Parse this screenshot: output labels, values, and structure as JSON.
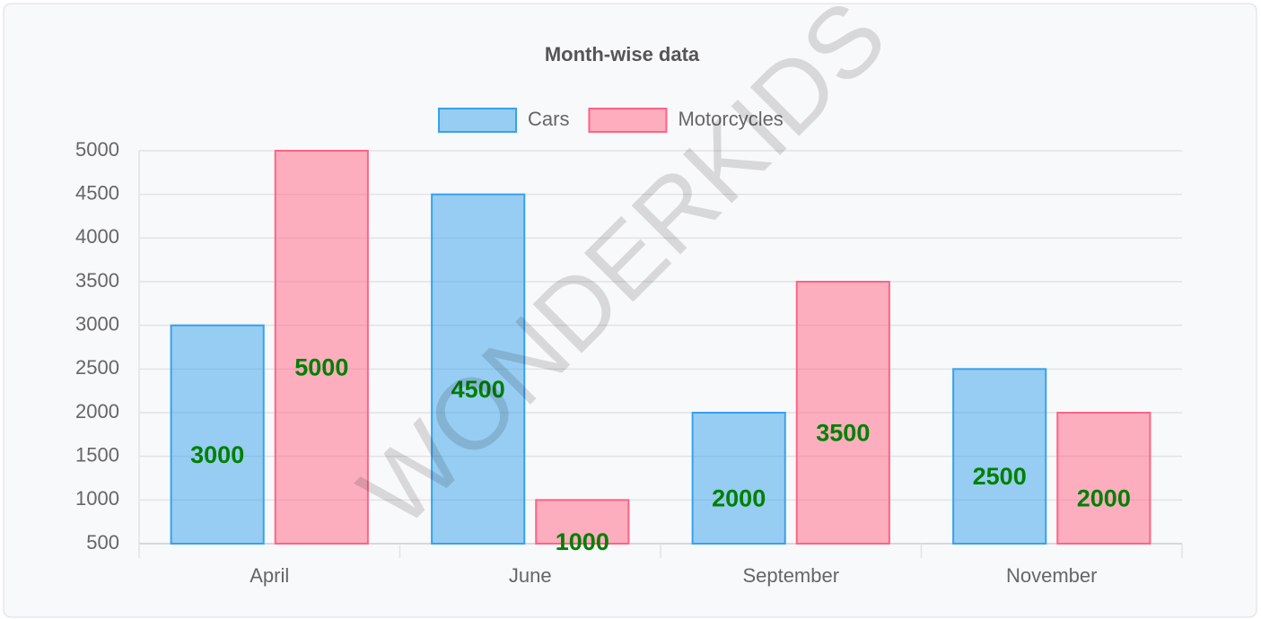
{
  "chart_data": {
    "type": "bar",
    "title": "Month-wise data",
    "categories": [
      "April",
      "June",
      "September",
      "November"
    ],
    "series": [
      {
        "name": "Cars",
        "color": "#36a2eb",
        "values": [
          3000,
          4500,
          2000,
          2500
        ]
      },
      {
        "name": "Motorcycles",
        "color": "#ff6384",
        "values": [
          5000,
          1000,
          3500,
          2000
        ]
      }
    ],
    "ylim": [
      500,
      5000
    ],
    "yticks": [
      500,
      1000,
      1500,
      2000,
      2500,
      3000,
      3500,
      4000,
      4500,
      5000
    ],
    "grid": true,
    "legend": "top",
    "value_label_color": "#008000",
    "watermark": "WONDERKIDS"
  }
}
